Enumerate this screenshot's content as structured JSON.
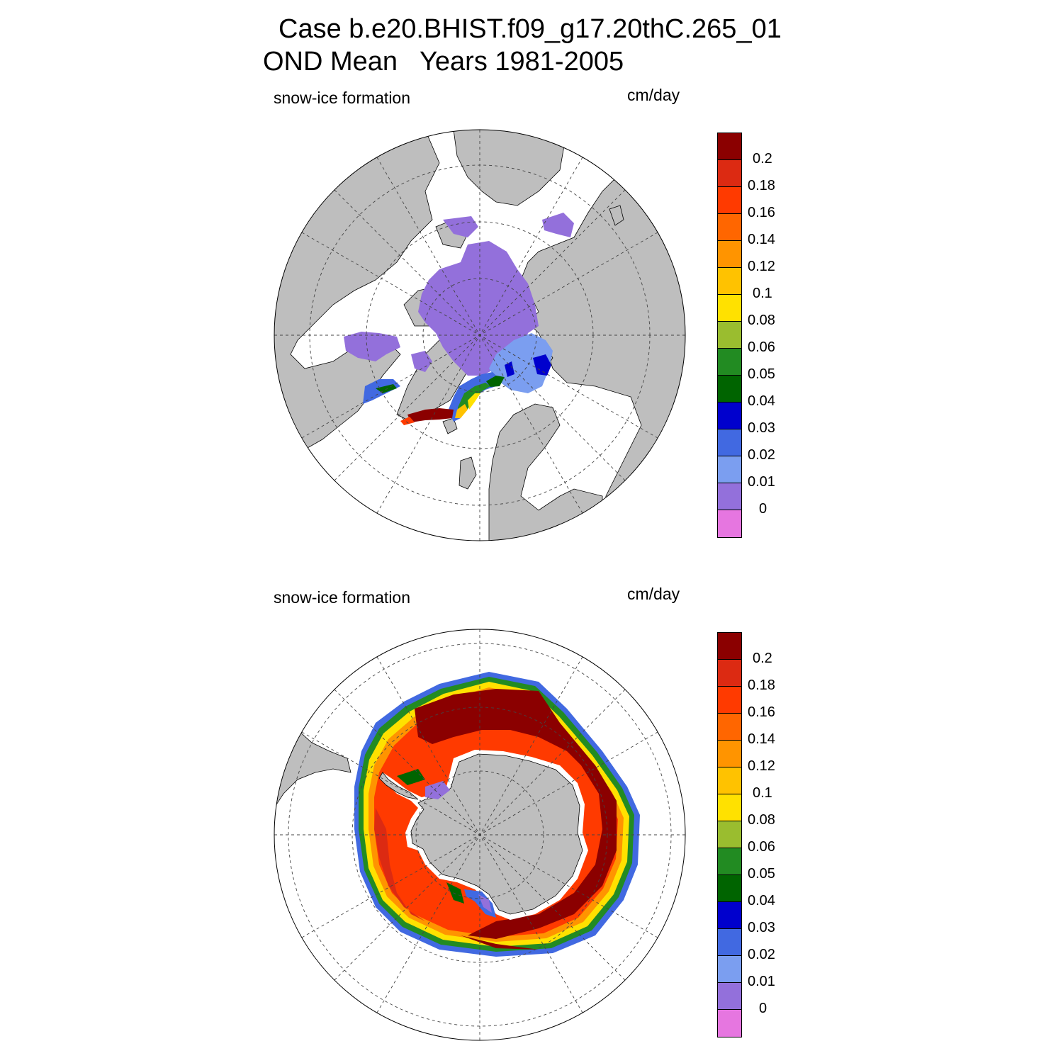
{
  "title": {
    "line1": "Case b.e20.BHIST.f09_g17.20thC.265_01",
    "line2": "OND Mean   Years 1981-2005"
  },
  "panels": [
    {
      "hemisphere": "north",
      "left_label": "snow-ice formation",
      "right_label": "cm/day",
      "colorbar_labels": [
        "0.2",
        "0.18",
        "0.16",
        "0.14",
        "0.12",
        "0.1",
        "0.08",
        "0.06",
        "0.05",
        "0.04",
        "0.03",
        "0.02",
        "0.01",
        "0"
      ]
    },
    {
      "hemisphere": "south",
      "left_label": "snow-ice formation",
      "right_label": "cm/day",
      "colorbar_labels": [
        "0.2",
        "0.18",
        "0.16",
        "0.14",
        "0.12",
        "0.1",
        "0.08",
        "0.06",
        "0.05",
        "0.04",
        "0.03",
        "0.02",
        "0.01",
        "0"
      ]
    }
  ],
  "colormap": [
    "#8b0000",
    "#dc2a12",
    "#ff3a00",
    "#ff6600",
    "#ff9400",
    "#ffc200",
    "#ffe100",
    "#9abd2f",
    "#228b22",
    "#006400",
    "#0000cd",
    "#4169e1",
    "#7b9ef0",
    "#9370db",
    "#e676e0"
  ],
  "land_color": "#bebebe",
  "ocean_color": "#ffffff"
}
